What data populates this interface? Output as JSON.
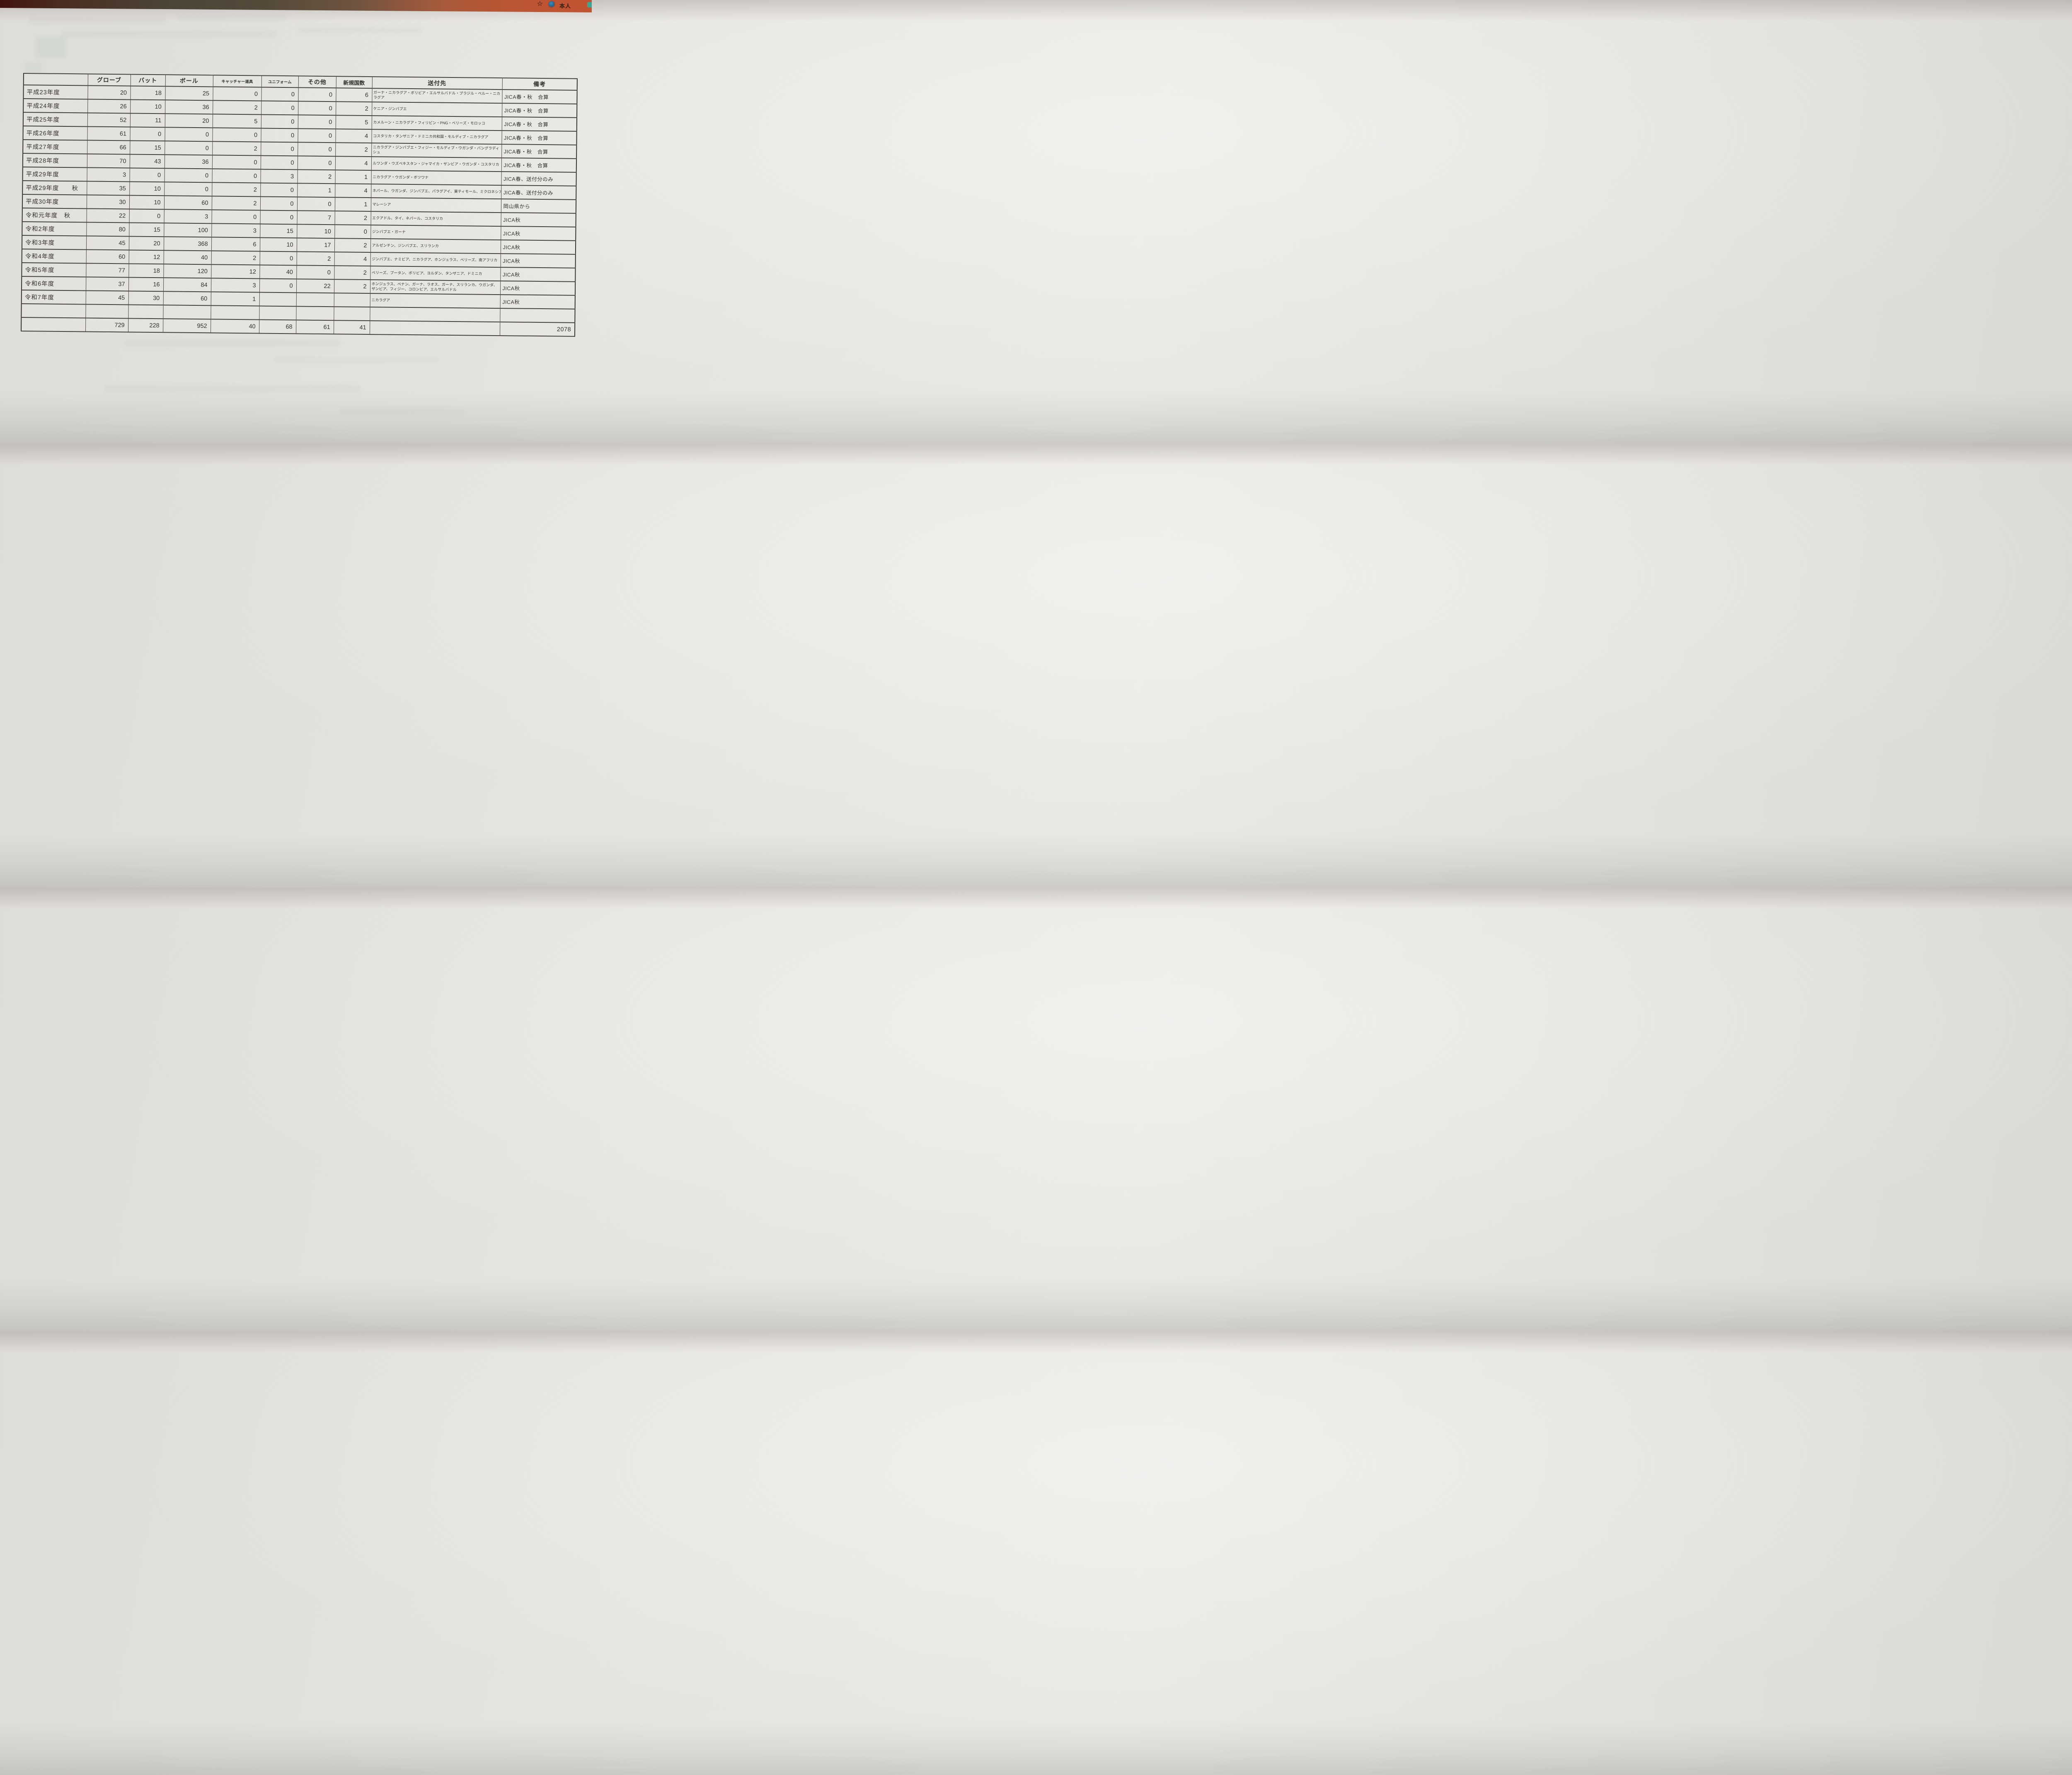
{
  "browser_bar": {
    "bookmark_star_icon": "☆",
    "profile_label": "本人"
  },
  "table": {
    "headers": [
      "",
      "グローブ",
      "バット",
      "ボール",
      "キャッチャー道具",
      "ユニフォーム",
      "その他",
      "新規国数",
      "送付先",
      "備考"
    ],
    "rows": [
      {
        "year": "平成23年度",
        "glove": "20",
        "bat": "18",
        "ball": "25",
        "catcher": "0",
        "uniform": "0",
        "other": "0",
        "new_countries": "6",
        "destinations": "ガーナ・ニカラグア・ボリビア・エルサルバドル・ブラジル・ペルー・ニカラグア",
        "remarks": "JICA春・秋　合算"
      },
      {
        "year": "平成24年度",
        "glove": "26",
        "bat": "10",
        "ball": "36",
        "catcher": "2",
        "uniform": "0",
        "other": "0",
        "new_countries": "2",
        "destinations": "ケニア・ジンバブエ",
        "remarks": "JICA春・秋　合算"
      },
      {
        "year": "平成25年度",
        "glove": "52",
        "bat": "11",
        "ball": "20",
        "catcher": "5",
        "uniform": "0",
        "other": "0",
        "new_countries": "5",
        "destinations": "カメルーン・ニカラグア・フィリピン・PNG・ベリーズ・モロッコ",
        "remarks": "JICA春・秋　合算"
      },
      {
        "year": "平成26年度",
        "glove": "61",
        "bat": "0",
        "ball": "0",
        "catcher": "0",
        "uniform": "0",
        "other": "0",
        "new_countries": "4",
        "destinations": "コスタリカ・タンザニア・ドミニカ共和国・モルディブ・ニカラグア",
        "remarks": "JICA春・秋　合算"
      },
      {
        "year": "平成27年度",
        "glove": "66",
        "bat": "15",
        "ball": "0",
        "catcher": "2",
        "uniform": "0",
        "other": "0",
        "new_countries": "2",
        "destinations": "ニカラグア・ジンバブエ・フィジー・モルディブ・ウガンダ・バングラディシュ",
        "remarks": "JICA春・秋　合算"
      },
      {
        "year": "平成28年度",
        "glove": "70",
        "bat": "43",
        "ball": "36",
        "catcher": "0",
        "uniform": "0",
        "other": "0",
        "new_countries": "4",
        "destinations": "ルワンダ・ウズベキスタン・ジャマイカ・ザンビア・ウガンダ・コスタリカ",
        "remarks": "JICA春・秋　合算"
      },
      {
        "year": "平成29年度",
        "glove": "3",
        "bat": "0",
        "ball": "0",
        "catcher": "0",
        "uniform": "3",
        "other": "2",
        "new_countries": "1",
        "destinations": "ニカラグア・ウガンダ・ボツワナ",
        "remarks": "JICA春、送付分のみ"
      },
      {
        "year": "平成29年度　　秋",
        "glove": "35",
        "bat": "10",
        "ball": "0",
        "catcher": "2",
        "uniform": "0",
        "other": "1",
        "new_countries": "4",
        "destinations": "ネパール、ウガンダ、ジンバブエ、パラグアイ、東ティモール、ミクロネシア、ニカラ",
        "remarks": "JICA春、送付分のみ"
      },
      {
        "year": "平成30年度",
        "glove": "30",
        "bat": "10",
        "ball": "60",
        "catcher": "2",
        "uniform": "0",
        "other": "0",
        "new_countries": "1",
        "destinations": "マレーシア",
        "remarks": "岡山県から"
      },
      {
        "year": "令和元年度　秋",
        "glove": "22",
        "bat": "0",
        "ball": "3",
        "catcher": "0",
        "uniform": "0",
        "other": "7",
        "new_countries": "2",
        "destinations": "エクアドル、タイ、ネパール、コスタリカ",
        "remarks": "JICA秋"
      },
      {
        "year": "令和2年度",
        "glove": "80",
        "bat": "15",
        "ball": "100",
        "catcher": "3",
        "uniform": "15",
        "other": "10",
        "new_countries": "0",
        "destinations": "ジンバブエ・ガーナ",
        "remarks": "JICA秋"
      },
      {
        "year": "令和3年度",
        "glove": "45",
        "bat": "20",
        "ball": "368",
        "catcher": "6",
        "uniform": "10",
        "other": "17",
        "new_countries": "2",
        "destinations": "アルゼンチン、ジンバブエ、スリランカ",
        "remarks": "JICA秋"
      },
      {
        "year": "令和4年度",
        "glove": "60",
        "bat": "12",
        "ball": "40",
        "catcher": "2",
        "uniform": "0",
        "other": "2",
        "new_countries": "4",
        "destinations": "ジンバブエ、ナミビア、ニカラグア、ホンジュラス、ベリーズ、南アフリカ",
        "remarks": "JICA秋"
      },
      {
        "year": "令和5年度",
        "glove": "77",
        "bat": "18",
        "ball": "120",
        "catcher": "12",
        "uniform": "40",
        "other": "0",
        "new_countries": "2",
        "destinations": "ベリーズ、ブータン、ボリビア、ヨルダン、タンザニア、ドミニカ",
        "remarks": "JICA秋"
      },
      {
        "year": "令和6年度",
        "glove": "37",
        "bat": "16",
        "ball": "84",
        "catcher": "3",
        "uniform": "0",
        "other": "22",
        "new_countries": "2",
        "destinations": "ホンジュラス、ベナン、ガーナ、ラオス、ガーナ、スリランカ、ウガンダ、ザンビア、フィジー、コロンビア、エルサルバドル",
        "remarks": "JICA秋"
      },
      {
        "year": "令和7年度",
        "glove": "45",
        "bat": "30",
        "ball": "60",
        "catcher": "1",
        "uniform": "",
        "other": "",
        "new_countries": "",
        "destinations": "ニカラグア",
        "remarks": "JICA秋"
      }
    ],
    "total_row": {
      "glove": "729",
      "bat": "228",
      "ball": "952",
      "catcher": "40",
      "uniform": "68",
      "other": "61",
      "new_countries": "41",
      "grand_total": "2078"
    }
  }
}
